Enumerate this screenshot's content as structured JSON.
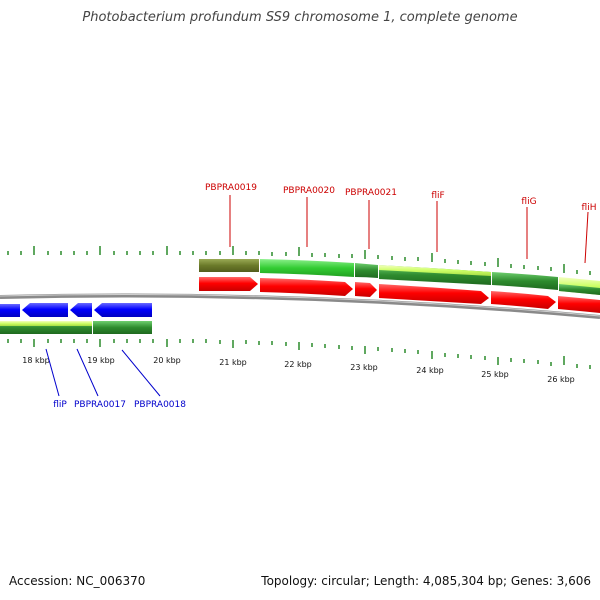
{
  "title": "Photobacterium profundum SS9 chromosome 1, complete genome",
  "footer": {
    "accession_label": "Accession:",
    "accession": "NC_006370",
    "topology_label": "Topology:",
    "topology": "circular",
    "length_label": "Length:",
    "length": "4,085,304 bp",
    "genes_label": "Genes:",
    "genes": "3,606"
  },
  "colors": {
    "forward_label": "#cc0000",
    "reverse_label": "#0000cc",
    "forward_cds": "#ff0000",
    "reverse_cds": "#0000ff",
    "backbone": "#888888",
    "tick": "#2a8a2a",
    "gene_dark_green": "#2e8b2e",
    "gene_green": "#33cc33",
    "gene_light_green": "#ccff66",
    "gene_olive": "#6b7a2a"
  },
  "ruler": {
    "labels": [
      "18 kbp",
      "19 kbp",
      "20 kbp",
      "21 kbp",
      "22 kbp",
      "23 kbp",
      "24 kbp",
      "25 kbp",
      "26 kbp"
    ]
  },
  "forward_genes": [
    {
      "name": "PBPRA0019"
    },
    {
      "name": "PBPRA0020"
    },
    {
      "name": "PBPRA0021"
    },
    {
      "name": "fliF"
    },
    {
      "name": "fliG"
    },
    {
      "name": "fliH"
    }
  ],
  "reverse_genes": [
    {
      "name": "fliP"
    },
    {
      "name": "PBPRA0017"
    },
    {
      "name": "PBPRA0018"
    }
  ]
}
